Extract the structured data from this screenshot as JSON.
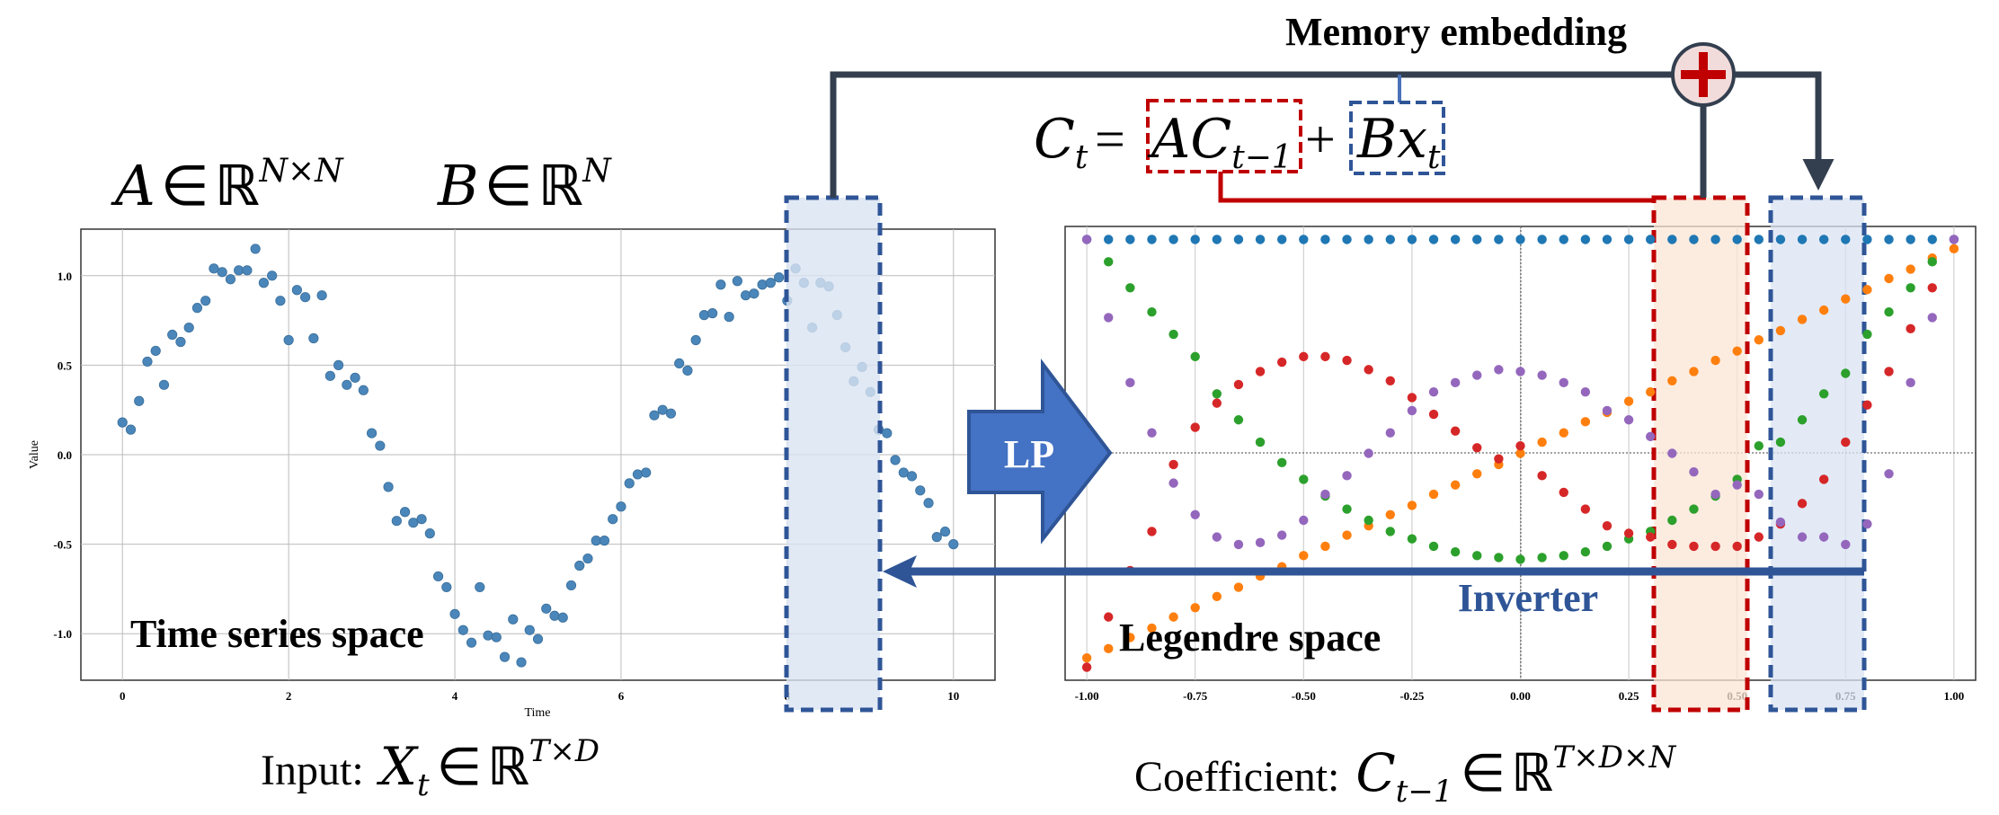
{
  "labels": {
    "memory_embedding": "Memory embedding",
    "lp": "LP",
    "inverter": "Inverter",
    "time_series_space": "Time series space",
    "legendre_space": "Legendre space",
    "input_prefix": "Input:",
    "coefficient_prefix": "Coefficient:"
  },
  "equations": {
    "recurrence": {
      "lhs": "C",
      "lhs_sub": "t",
      "eq": "=",
      "a": "A",
      "ac": "C",
      "ac_sub": "t−1",
      "plus": "+",
      "b": "B",
      "x": "x",
      "x_sub": "t"
    },
    "a_dim": {
      "sym": "A",
      "in": "∈",
      "field": "ℝ",
      "sup": "N×N"
    },
    "b_dim": {
      "sym": "B",
      "in": "∈",
      "field": "ℝ",
      "sup": "N"
    },
    "input": {
      "sym": "X",
      "sub": "t",
      "in": "∈",
      "field": "ℝ",
      "sup": "T×D"
    },
    "coef": {
      "sym": "C",
      "sub": "t−1",
      "in": "∈",
      "field": "ℝ",
      "sup": "T×D×N"
    }
  },
  "colors": {
    "dark_line": "#333f4f",
    "red_accent": "#c00000",
    "blue_accent": "#2f5597",
    "lp_fill": "#4472c4",
    "red_highlight": "#fbe5d6",
    "blue_highlight": "#dae3f3",
    "plus_fill": "#f2dcdb",
    "ts_point": "#4a86b9"
  },
  "icons": {
    "plus": "plus-circle-icon",
    "lp_arrow": "right-arrow-icon"
  },
  "chart_data": [
    {
      "type": "scatter",
      "xlabel": "Time",
      "ylabel": "Value",
      "xlim": [
        -0.5,
        10.5
      ],
      "ylim": [
        -1.26,
        1.26
      ],
      "xticks": [
        "0",
        "2",
        "4",
        "6",
        "8",
        "10"
      ],
      "yticks": [
        "1.0",
        "0.5",
        "0.0",
        "-0.5",
        "-1.0"
      ],
      "grid": true,
      "series": [
        {
          "color": "#4a86b9",
          "x": [
            0,
            0.1,
            0.2,
            0.3,
            0.4,
            0.5,
            0.6,
            0.7,
            0.8,
            0.9,
            1.0,
            1.1,
            1.2,
            1.3,
            1.4,
            1.5,
            1.6,
            1.7,
            1.8,
            1.9,
            2.0,
            2.1,
            2.2,
            2.3,
            2.4,
            2.5,
            2.6,
            2.7,
            2.8,
            2.9,
            3.0,
            3.1,
            3.2,
            3.3,
            3.4,
            3.5,
            3.6,
            3.7,
            3.8,
            3.9,
            4.0,
            4.1,
            4.2,
            4.3,
            4.4,
            4.5,
            4.6,
            4.7,
            4.8,
            4.9,
            5.0,
            5.1,
            5.2,
            5.3,
            5.4,
            5.5,
            5.6,
            5.7,
            5.8,
            5.9,
            6.0,
            6.1,
            6.2,
            6.3,
            6.4,
            6.5,
            6.6,
            6.7,
            6.8,
            6.9,
            7.0,
            7.1,
            7.2,
            7.3,
            7.4,
            7.5,
            7.6,
            7.7,
            7.8,
            7.9,
            8.0,
            8.1,
            8.2,
            8.3,
            8.4,
            8.5,
            8.6,
            8.7,
            8.8,
            8.9,
            9.0,
            9.1,
            9.2,
            9.3,
            9.4,
            9.5,
            9.6,
            9.7,
            9.8,
            9.9,
            10.0
          ],
          "y": [
            0.18,
            0.14,
            0.3,
            0.52,
            0.58,
            0.39,
            0.67,
            0.63,
            0.71,
            0.82,
            0.86,
            1.04,
            1.02,
            0.98,
            1.03,
            1.03,
            1.15,
            0.96,
            1.0,
            0.86,
            0.64,
            0.92,
            0.88,
            0.65,
            0.89,
            0.44,
            0.5,
            0.39,
            0.43,
            0.36,
            0.12,
            0.05,
            -0.18,
            -0.37,
            -0.32,
            -0.38,
            -0.36,
            -0.44,
            -0.68,
            -0.74,
            -0.89,
            -0.98,
            -1.05,
            -0.74,
            -1.01,
            -1.02,
            -1.13,
            -0.92,
            -1.16,
            -0.98,
            -1.03,
            -0.86,
            -0.9,
            -0.91,
            -0.73,
            -0.62,
            -0.58,
            -0.48,
            -0.48,
            -0.36,
            -0.29,
            -0.16,
            -0.11,
            -0.1,
            0.22,
            0.25,
            0.23,
            0.51,
            0.47,
            0.64,
            0.78,
            0.79,
            0.95,
            0.77,
            0.97,
            0.89,
            0.9,
            0.95,
            0.96,
            0.99,
            0.86,
            1.04,
            0.96,
            0.71,
            0.96,
            0.94,
            0.78,
            0.6,
            0.41,
            0.49,
            0.35,
            0.14,
            0.12,
            -0.03,
            -0.1,
            -0.12,
            -0.2,
            -0.27,
            -0.46,
            -0.43,
            -0.5
          ]
        }
      ]
    },
    {
      "type": "scatter",
      "xlim": [
        -1.05,
        1.05
      ],
      "ylim": [
        -1.22,
        1.22
      ],
      "xticks": [
        "-1.00",
        "-0.75",
        "-0.50",
        "-0.25",
        "0.00",
        "0.25",
        "0.50",
        "0.75",
        "1.00"
      ],
      "grid": true,
      "series": [
        {
          "color": "#1f77b4",
          "x": [
            -1.0,
            -0.95,
            -0.9,
            -0.85,
            -0.8,
            -0.75,
            -0.7,
            -0.65,
            -0.6,
            -0.55,
            -0.5,
            -0.45,
            -0.4,
            -0.35,
            -0.3,
            -0.25,
            -0.2,
            -0.15,
            -0.1,
            -0.05,
            0.0,
            0.05,
            0.1,
            0.15,
            0.2,
            0.25,
            0.3,
            0.35,
            0.4,
            0.45,
            0.5,
            0.55,
            0.6,
            0.65,
            0.7,
            0.75,
            0.8,
            0.85,
            0.9,
            0.95,
            1.0
          ],
          "y": [
            1.15,
            1.15,
            1.15,
            1.15,
            1.15,
            1.15,
            1.15,
            1.15,
            1.15,
            1.15,
            1.15,
            1.15,
            1.15,
            1.15,
            1.15,
            1.15,
            1.15,
            1.15,
            1.15,
            1.15,
            1.15,
            1.15,
            1.15,
            1.15,
            1.15,
            1.15,
            1.15,
            1.15,
            1.15,
            1.15,
            1.15,
            1.15,
            1.15,
            1.15,
            1.15,
            1.15,
            1.15,
            1.15,
            1.15,
            1.15,
            1.15
          ]
        },
        {
          "color": "#ff7f0e",
          "x": [
            -1.0,
            -0.95,
            -0.9,
            -0.85,
            -0.8,
            -0.75,
            -0.7,
            -0.65,
            -0.6,
            -0.55,
            -0.5,
            -0.45,
            -0.4,
            -0.35,
            -0.3,
            -0.25,
            -0.2,
            -0.15,
            -0.1,
            -0.05,
            0.0,
            0.05,
            0.1,
            0.15,
            0.2,
            0.25,
            0.3,
            0.35,
            0.4,
            0.45,
            0.5,
            0.55,
            0.6,
            0.65,
            0.7,
            0.75,
            0.8,
            0.85,
            0.9,
            0.95,
            1.0
          ],
          "y": [
            -1.1,
            -1.05,
            -0.99,
            -0.94,
            -0.88,
            -0.83,
            -0.77,
            -0.72,
            -0.66,
            -0.61,
            -0.55,
            -0.5,
            -0.44,
            -0.39,
            -0.33,
            -0.28,
            -0.22,
            -0.17,
            -0.11,
            -0.06,
            0.0,
            0.06,
            0.11,
            0.17,
            0.22,
            0.28,
            0.33,
            0.39,
            0.44,
            0.5,
            0.55,
            0.61,
            0.66,
            0.72,
            0.77,
            0.83,
            0.88,
            0.94,
            0.99,
            1.05,
            1.1
          ]
        },
        {
          "color": "#2ca02c",
          "x": [
            -0.95,
            -0.9,
            -0.85,
            -0.8,
            -0.75,
            -0.7,
            -0.65,
            -0.6,
            -0.55,
            -0.5,
            -0.45,
            -0.4,
            -0.35,
            -0.3,
            -0.25,
            -0.2,
            -0.15,
            -0.1,
            -0.05,
            0.0,
            0.05,
            0.1,
            0.15,
            0.2,
            0.25,
            0.3,
            0.35,
            0.4,
            0.45,
            0.5,
            0.55,
            0.6,
            0.65,
            0.7,
            0.75,
            0.8,
            0.85,
            0.9,
            0.95
          ],
          "y": [
            1.03,
            0.89,
            0.76,
            0.64,
            0.52,
            0.32,
            0.18,
            0.06,
            -0.05,
            -0.14,
            -0.23,
            -0.3,
            -0.36,
            -0.42,
            -0.46,
            -0.5,
            -0.53,
            -0.55,
            -0.56,
            -0.57,
            -0.56,
            -0.55,
            -0.53,
            -0.5,
            -0.46,
            -0.42,
            -0.36,
            -0.3,
            -0.23,
            -0.14,
            0.04,
            0.06,
            0.18,
            0.32,
            0.43,
            0.64,
            0.76,
            0.89,
            1.03
          ]
        },
        {
          "color": "#d62728",
          "x": [
            -1.0,
            -0.95,
            -0.9,
            -0.85,
            -0.8,
            -0.75,
            -0.7,
            -0.65,
            -0.6,
            -0.55,
            -0.5,
            -0.45,
            -0.4,
            -0.35,
            -0.3,
            -0.25,
            -0.2,
            -0.15,
            -0.1,
            -0.05,
            0.0,
            0.05,
            0.1,
            0.15,
            0.2,
            0.25,
            0.3,
            0.35,
            0.4,
            0.45,
            0.5,
            0.55,
            0.6,
            0.65,
            0.7,
            0.75,
            0.8,
            0.85,
            0.9,
            0.95
          ],
          "y": [
            -1.15,
            -0.88,
            -0.63,
            -0.42,
            -0.06,
            0.14,
            0.27,
            0.37,
            0.44,
            0.49,
            0.52,
            0.52,
            0.5,
            0.45,
            0.39,
            0.3,
            0.21,
            0.12,
            0.03,
            -0.03,
            0.04,
            -0.12,
            -0.21,
            -0.3,
            -0.39,
            -0.43,
            -0.45,
            -0.49,
            -0.5,
            -0.5,
            -0.5,
            -0.45,
            -0.38,
            -0.27,
            -0.14,
            0.06,
            0.26,
            0.44,
            0.67,
            0.89
          ]
        },
        {
          "color": "#9467bd",
          "x": [
            -1.0,
            -0.95,
            -0.9,
            -0.85,
            -0.8,
            -0.75,
            -0.7,
            -0.65,
            -0.6,
            -0.55,
            -0.5,
            -0.45,
            -0.4,
            -0.35,
            -0.3,
            -0.25,
            -0.2,
            -0.15,
            -0.1,
            -0.05,
            0.0,
            0.05,
            0.1,
            0.15,
            0.2,
            0.25,
            0.3,
            0.35,
            0.4,
            0.45,
            0.5,
            0.55,
            0.6,
            0.65,
            0.7,
            0.75,
            0.8,
            0.85,
            0.9,
            0.95,
            1.0
          ],
          "y": [
            1.15,
            0.73,
            0.38,
            0.11,
            -0.16,
            -0.33,
            -0.45,
            -0.49,
            -0.48,
            -0.44,
            -0.36,
            -0.22,
            -0.12,
            0.0,
            0.11,
            0.23,
            0.33,
            0.38,
            0.42,
            0.45,
            0.44,
            0.42,
            0.38,
            0.33,
            0.23,
            0.18,
            0.09,
            0.0,
            -0.1,
            -0.22,
            -0.17,
            -0.22,
            -0.37,
            -0.45,
            -0.45,
            -0.49,
            -0.38,
            -0.11,
            0.38,
            0.73,
            1.15
          ]
        }
      ]
    }
  ]
}
